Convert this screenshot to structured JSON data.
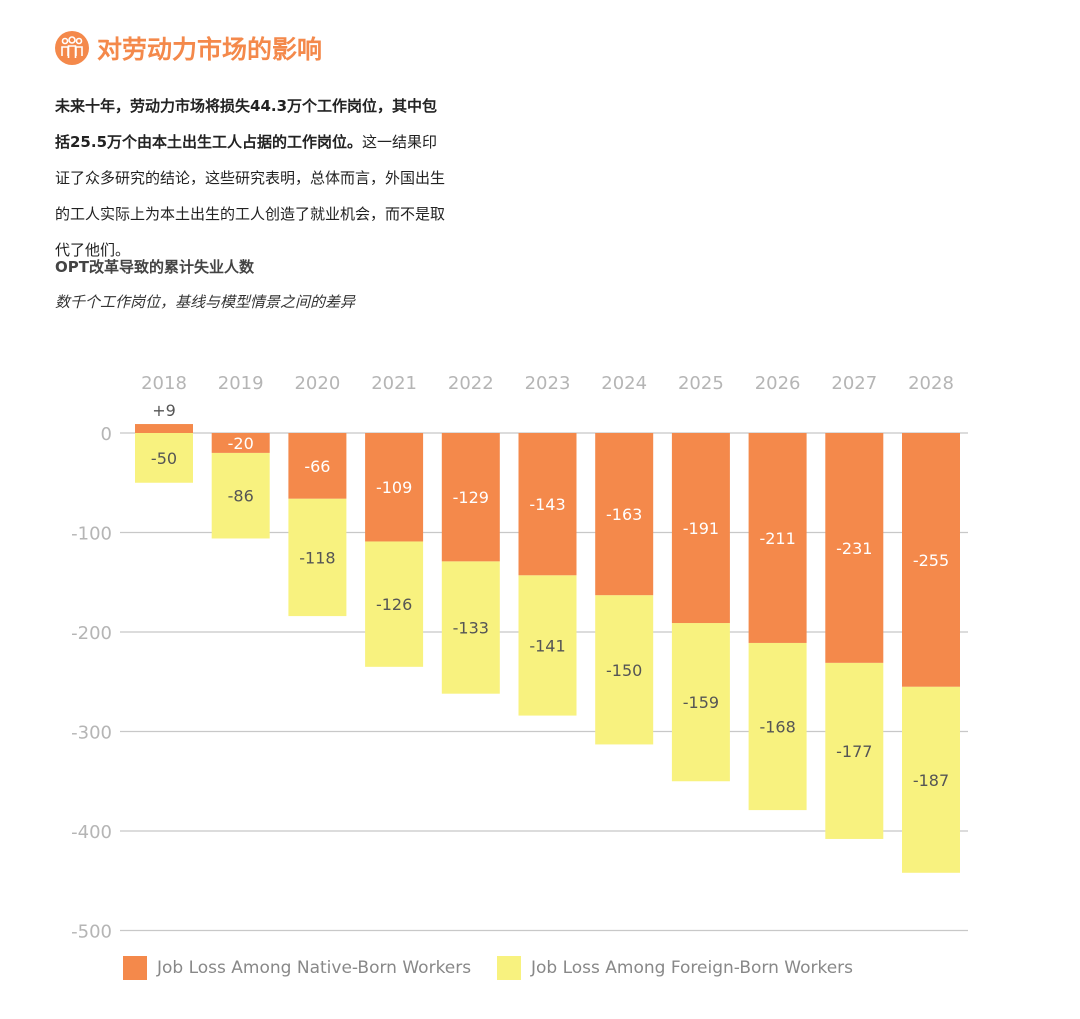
{
  "header": {
    "icon": "people-icon",
    "title": "对劳动力市场的影响"
  },
  "paragraph": {
    "bold": "未来十年，劳动力市场将损失44.3万个工作岗位，其中包括25.5万个由本土出生工人占据的工作岗位。",
    "rest": "这一结果印证了众多研究的结论，这些研究表明，总体而言，外国出生的工人实际上为本土出生的工人创造了就业机会，而不是取代了他们。"
  },
  "chart_data": {
    "type": "bar",
    "stacked": true,
    "title": "OPT改革导致的累计失业人数",
    "subtitle": "数千个工作岗位，基线与模型情景之间的差异",
    "categories": [
      "2018",
      "2019",
      "2020",
      "2021",
      "2022",
      "2023",
      "2024",
      "2025",
      "2026",
      "2027",
      "2028"
    ],
    "series": [
      {
        "name": "Job Loss Among Native-Born Workers",
        "color": "#f4894b",
        "values": [
          9,
          -20,
          -66,
          -109,
          -129,
          -143,
          -163,
          -191,
          -211,
          -231,
          -255
        ],
        "labels": [
          "+9",
          "-20",
          "-66",
          "-109",
          "-129",
          "-143",
          "-163",
          "-191",
          "-211",
          "-231",
          "-255"
        ]
      },
      {
        "name": "Job Loss Among Foreign-Born Workers",
        "color": "#f8f27f",
        "values": [
          -50,
          -86,
          -118,
          -126,
          -133,
          -141,
          -150,
          -159,
          -168,
          -177,
          -187
        ],
        "labels": [
          "-50",
          "-86",
          "-118",
          "-126",
          "-133",
          "-141",
          "-150",
          "-159",
          "-168",
          "-177",
          "-187"
        ]
      }
    ],
    "yticks": [
      "0",
      "-100",
      "-200",
      "-300",
      "-400",
      "-500"
    ],
    "ylim": [
      -500,
      0
    ],
    "grid": true,
    "legend": "bottom"
  }
}
